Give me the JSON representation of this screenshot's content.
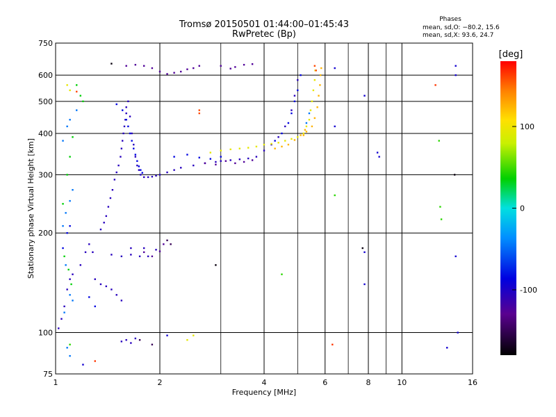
{
  "chart_data": {
    "type": "scatter",
    "title": "Tromsø 20150501 01:44:00–01:45:43",
    "subtitle": "RwPretec (Bp)",
    "xlabel": "Frequency [MHz]",
    "ylabel": "Stationary phase Virtual Height [km]",
    "x_scale": "log",
    "y_scale": "log",
    "xlim": [
      1,
      16
    ],
    "ylim": [
      75,
      750
    ],
    "x_ticks": [
      1,
      2,
      4,
      6,
      8,
      10,
      16
    ],
    "x_minor_ticks": [
      3,
      5,
      7,
      9
    ],
    "y_ticks": [
      75,
      100,
      200,
      300,
      400,
      500,
      600,
      750
    ],
    "grid": true,
    "stats": {
      "heading": "Phases",
      "line_o": "mean, sd,O: −80.2, 15.6",
      "line_x": "mean, sd,X:  93.6, 24.7"
    },
    "colorbar": {
      "label": "[deg]",
      "min": -180,
      "max": 180,
      "ticks": [
        100,
        0,
        -100
      ]
    },
    "series": [
      {
        "phase": -105,
        "points": [
          [
            1.02,
            103
          ],
          [
            1.04,
            110
          ],
          [
            1.06,
            120
          ],
          [
            1.08,
            135
          ],
          [
            1.1,
            145
          ],
          [
            1.12,
            150
          ],
          [
            1.18,
            160
          ],
          [
            1.22,
            175
          ],
          [
            1.25,
            185
          ],
          [
            1.28,
            175
          ],
          [
            1.35,
            205
          ],
          [
            1.38,
            215
          ],
          [
            1.4,
            225
          ],
          [
            1.42,
            240
          ],
          [
            1.44,
            255
          ],
          [
            1.46,
            270
          ],
          [
            1.48,
            290
          ],
          [
            1.5,
            305
          ],
          [
            1.52,
            320
          ],
          [
            1.54,
            340
          ],
          [
            1.55,
            360
          ],
          [
            1.56,
            380
          ],
          [
            1.57,
            400
          ],
          [
            1.58,
            420
          ],
          [
            1.59,
            440
          ],
          [
            1.6,
            460
          ],
          [
            1.6,
            480
          ],
          [
            1.62,
            500
          ],
          [
            1.64,
            450
          ],
          [
            1.66,
            400
          ],
          [
            1.68,
            370
          ],
          [
            1.7,
            340
          ],
          [
            1.72,
            320
          ],
          [
            1.74,
            310
          ],
          [
            1.76,
            300
          ],
          [
            1.8,
            295
          ],
          [
            1.85,
            295
          ],
          [
            1.9,
            296
          ],
          [
            1.95,
            298
          ],
          [
            2.0,
            300
          ],
          [
            2.1,
            305
          ],
          [
            2.2,
            310
          ],
          [
            2.3,
            315
          ],
          [
            2.5,
            320
          ],
          [
            2.7,
            325
          ],
          [
            2.9,
            328
          ],
          [
            3.0,
            330
          ],
          [
            3.2,
            332
          ],
          [
            3.4,
            334
          ],
          [
            3.6,
            336
          ],
          [
            3.8,
            340
          ],
          [
            4.0,
            355
          ],
          [
            4.2,
            370
          ],
          [
            4.4,
            390
          ],
          [
            4.6,
            420
          ],
          [
            4.8,
            470
          ],
          [
            4.9,
            520
          ],
          [
            5.0,
            580
          ],
          [
            1.3,
            145
          ],
          [
            1.35,
            140
          ],
          [
            1.4,
            138
          ],
          [
            1.45,
            135
          ],
          [
            1.5,
            130
          ],
          [
            1.55,
            125
          ],
          [
            1.45,
            172
          ],
          [
            1.55,
            170
          ],
          [
            1.65,
            172
          ],
          [
            1.75,
            170
          ],
          [
            1.85,
            170
          ],
          [
            1.65,
            180
          ],
          [
            1.8,
            180
          ],
          [
            1.95,
            178
          ],
          [
            1.6,
            95
          ],
          [
            1.65,
            93
          ],
          [
            1.7,
            96
          ],
          [
            1.55,
            94
          ]
        ]
      },
      {
        "phase": -125,
        "points": [
          [
            1.6,
            640
          ],
          [
            1.7,
            645
          ],
          [
            1.8,
            640
          ],
          [
            1.9,
            630
          ],
          [
            2.0,
            615
          ],
          [
            2.1,
            605
          ],
          [
            2.2,
            610
          ],
          [
            2.3,
            615
          ],
          [
            2.4,
            625
          ],
          [
            2.5,
            630
          ],
          [
            2.6,
            640
          ],
          [
            3.0,
            640
          ],
          [
            3.2,
            628
          ],
          [
            3.3,
            635
          ],
          [
            3.5,
            645
          ],
          [
            3.7,
            648
          ],
          [
            3.1,
            330
          ],
          [
            3.3,
            325
          ],
          [
            3.5,
            328
          ],
          [
            3.7,
            332
          ],
          [
            2.9,
            322
          ],
          [
            2.7,
            325
          ],
          [
            1.8,
            175
          ],
          [
            1.9,
            170
          ],
          [
            2.0,
            176
          ],
          [
            2.05,
            185
          ]
        ]
      },
      {
        "phase": -85,
        "points": [
          [
            1.5,
            490
          ],
          [
            1.56,
            470
          ],
          [
            1.6,
            440
          ],
          [
            1.62,
            420
          ],
          [
            1.64,
            400
          ],
          [
            1.66,
            380
          ],
          [
            1.68,
            360
          ],
          [
            1.7,
            345
          ],
          [
            1.72,
            330
          ],
          [
            1.74,
            318
          ],
          [
            1.76,
            310
          ],
          [
            1.78,
            304
          ],
          [
            2.2,
            340
          ],
          [
            2.4,
            345
          ],
          [
            2.6,
            338
          ],
          [
            2.8,
            335
          ],
          [
            3.0,
            340
          ],
          [
            4.3,
            380
          ],
          [
            4.5,
            400
          ],
          [
            4.7,
            430
          ],
          [
            4.8,
            460
          ],
          [
            4.9,
            500
          ],
          [
            5.0,
            540
          ],
          [
            5.1,
            600
          ],
          [
            1.25,
            128
          ],
          [
            1.3,
            120
          ],
          [
            1.05,
            180
          ],
          [
            1.08,
            200
          ],
          [
            1.1,
            210
          ]
        ]
      },
      {
        "phase": -45,
        "points": [
          [
            1.05,
            210
          ],
          [
            1.07,
            230
          ],
          [
            1.1,
            250
          ],
          [
            1.12,
            270
          ],
          [
            1.05,
            380
          ],
          [
            1.08,
            420
          ],
          [
            1.1,
            440
          ],
          [
            1.15,
            470
          ],
          [
            1.07,
            160
          ],
          [
            1.1,
            130
          ],
          [
            1.12,
            125
          ],
          [
            1.06,
            115
          ],
          [
            1.08,
            90
          ],
          [
            1.1,
            85
          ],
          [
            5.3,
            430
          ],
          [
            5.4,
            460
          ]
        ]
      },
      {
        "phase": 35,
        "points": [
          [
            1.05,
            245
          ],
          [
            1.08,
            300
          ],
          [
            1.1,
            340
          ],
          [
            1.12,
            390
          ],
          [
            1.15,
            560
          ],
          [
            1.18,
            520
          ],
          [
            1.2,
            500
          ],
          [
            1.06,
            170
          ],
          [
            1.09,
            155
          ],
          [
            1.11,
            140
          ]
        ]
      },
      {
        "phase": 95,
        "points": [
          [
            2.8,
            350
          ],
          [
            3.0,
            355
          ],
          [
            3.2,
            358
          ],
          [
            3.4,
            360
          ],
          [
            3.6,
            362
          ],
          [
            3.8,
            365
          ],
          [
            4.0,
            370
          ],
          [
            4.2,
            372
          ],
          [
            4.4,
            375
          ],
          [
            4.6,
            380
          ],
          [
            4.8,
            385
          ],
          [
            5.0,
            390
          ],
          [
            5.2,
            400
          ],
          [
            5.3,
            420
          ],
          [
            5.4,
            440
          ],
          [
            5.45,
            470
          ],
          [
            5.5,
            500
          ],
          [
            5.55,
            540
          ],
          [
            5.6,
            580
          ],
          [
            5.62,
            620
          ],
          [
            2.5,
            98
          ],
          [
            2.4,
            95
          ],
          [
            1.08,
            560
          ],
          [
            1.1,
            540
          ]
        ]
      },
      {
        "phase": 125,
        "points": [
          [
            4.3,
            360
          ],
          [
            4.5,
            365
          ],
          [
            4.7,
            370
          ],
          [
            4.9,
            382
          ],
          [
            5.1,
            395
          ],
          [
            5.3,
            405
          ],
          [
            5.5,
            420
          ],
          [
            5.6,
            445
          ],
          [
            5.7,
            480
          ],
          [
            5.75,
            520
          ],
          [
            5.8,
            560
          ],
          [
            5.82,
            600
          ],
          [
            5.85,
            630
          ],
          [
            5.2,
            395
          ],
          [
            5.25,
            410
          ]
        ]
      },
      {
        "phase": 160,
        "points": [
          [
            2.6,
            460
          ],
          [
            2.6,
            470
          ],
          [
            5.6,
            640
          ],
          [
            5.65,
            620
          ],
          [
            1.15,
            535
          ]
        ]
      },
      {
        "phase": -150,
        "points": [
          [
            2.1,
            190
          ],
          [
            2.15,
            185
          ],
          [
            1.9,
            92
          ],
          [
            1.75,
            95
          ]
        ]
      },
      {
        "phase": 45,
        "points": [
          [
            12.8,
            380
          ],
          [
            12.9,
            240
          ],
          [
            13.0,
            220
          ],
          [
            6.4,
            260
          ],
          [
            4.5,
            150
          ],
          [
            1.1,
            92
          ]
        ]
      },
      {
        "phase": -95,
        "points": [
          [
            7.8,
            520
          ],
          [
            7.8,
            140
          ],
          [
            8.5,
            350
          ],
          [
            8.6,
            340
          ],
          [
            14.3,
            600
          ],
          [
            14.3,
            170
          ],
          [
            14.3,
            640
          ],
          [
            14.5,
            100
          ],
          [
            13.5,
            90
          ],
          [
            6.4,
            630
          ],
          [
            6.4,
            420
          ],
          [
            7.8,
            175
          ],
          [
            2.1,
            98
          ],
          [
            1.2,
            80
          ]
        ]
      },
      {
        "phase": 165,
        "points": [
          [
            6.3,
            92
          ],
          [
            12.5,
            560
          ],
          [
            1.3,
            82
          ]
        ]
      },
      {
        "phase": -175,
        "points": [
          [
            14.2,
            300
          ],
          [
            7.7,
            180
          ],
          [
            2.9,
            160
          ],
          [
            1.45,
            650
          ]
        ]
      }
    ]
  }
}
